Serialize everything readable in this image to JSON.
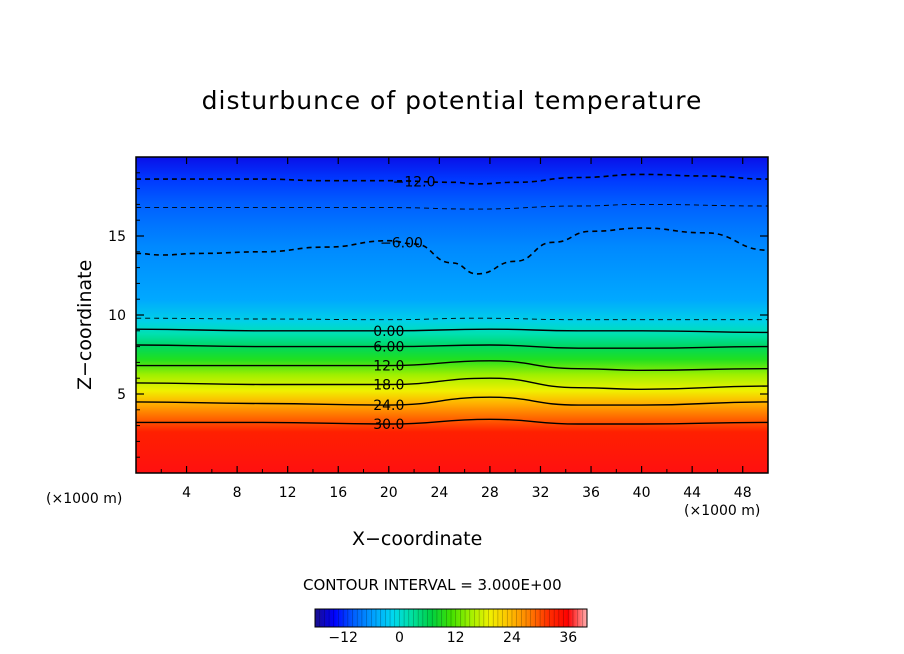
{
  "chart_data": {
    "type": "contour",
    "title": "disturbunce of potential temperature",
    "xlabel": "X−coordinate",
    "ylabel": "Z−coordinate",
    "x_unit": "(×1000 m)",
    "y_unit": "(×1000 m)",
    "xlim": [
      0,
      50
    ],
    "ylim": [
      0,
      20
    ],
    "x_ticks": [
      4,
      8,
      12,
      16,
      20,
      24,
      28,
      32,
      36,
      40,
      44,
      48
    ],
    "y_ticks": [
      5,
      10,
      15
    ],
    "contour_interval_text": "CONTOUR INTERVAL = 3.000E+00",
    "contour_interval": 3.0,
    "contours": [
      {
        "level": -12,
        "label": "−12.0",
        "dashed": true,
        "x": [
          0,
          5,
          10,
          15,
          20,
          25,
          27,
          30,
          35,
          40,
          45,
          50
        ],
        "z": [
          18.6,
          18.6,
          18.6,
          18.5,
          18.5,
          18.4,
          18.3,
          18.4,
          18.7,
          18.9,
          18.8,
          18.6
        ]
      },
      {
        "level": -9,
        "label": "",
        "dashed": true,
        "x": [
          0,
          10,
          20,
          27,
          35,
          40,
          50
        ],
        "z": [
          16.8,
          16.8,
          16.8,
          16.7,
          16.9,
          17.0,
          16.9
        ]
      },
      {
        "level": -6,
        "label": "−6.00",
        "dashed": true,
        "x": [
          0,
          2,
          5,
          10,
          15,
          20,
          22,
          25,
          27,
          30,
          33,
          36,
          40,
          45,
          50
        ],
        "z": [
          13.9,
          13.8,
          13.9,
          14.0,
          14.3,
          14.7,
          14.5,
          13.3,
          12.6,
          13.4,
          14.6,
          15.3,
          15.5,
          15.2,
          14.1
        ]
      },
      {
        "level": -3,
        "label": "",
        "dashed": true,
        "x": [
          0,
          10,
          20,
          27,
          35,
          40,
          50
        ],
        "z": [
          9.8,
          9.75,
          9.7,
          9.8,
          9.7,
          9.7,
          9.7
        ]
      },
      {
        "level": 0,
        "label": "0.00",
        "dashed": false,
        "x": [
          0,
          10,
          20,
          28,
          35,
          40,
          50
        ],
        "z": [
          9.1,
          9.0,
          9.0,
          9.1,
          9.0,
          9.0,
          8.9
        ]
      },
      {
        "level": 6,
        "label": "6.00",
        "dashed": false,
        "x": [
          0,
          10,
          20,
          28,
          35,
          40,
          50
        ],
        "z": [
          8.1,
          8.0,
          8.0,
          8.1,
          7.9,
          7.9,
          8.0
        ]
      },
      {
        "level": 12,
        "label": "12.0",
        "dashed": false,
        "x": [
          0,
          10,
          20,
          28,
          35,
          40,
          50
        ],
        "z": [
          6.8,
          6.8,
          6.8,
          7.1,
          6.6,
          6.5,
          6.6
        ]
      },
      {
        "level": 18,
        "label": "18.0",
        "dashed": false,
        "x": [
          0,
          10,
          20,
          28,
          35,
          40,
          50
        ],
        "z": [
          5.7,
          5.6,
          5.6,
          6.0,
          5.4,
          5.3,
          5.5
        ]
      },
      {
        "level": 24,
        "label": "24.0",
        "dashed": false,
        "x": [
          0,
          10,
          20,
          28,
          35,
          40,
          50
        ],
        "z": [
          4.5,
          4.4,
          4.3,
          4.8,
          4.3,
          4.3,
          4.5
        ]
      },
      {
        "level": 30,
        "label": "30.0",
        "dashed": false,
        "x": [
          0,
          10,
          20,
          28,
          35,
          40,
          50
        ],
        "z": [
          3.2,
          3.2,
          3.1,
          3.4,
          3.1,
          3.1,
          3.2
        ]
      }
    ],
    "colorbar": {
      "min": -18,
      "max": 40,
      "ticks": [
        -12,
        0,
        12,
        24,
        36
      ],
      "tick_labels": [
        "−12",
        "0",
        "12",
        "24",
        "36"
      ]
    },
    "colormap": [
      "#1a0f8c",
      "#0000ff",
      "#0060ff",
      "#00a0ff",
      "#00d8f0",
      "#00e0a0",
      "#00d040",
      "#40e000",
      "#a0f000",
      "#f0f000",
      "#ffc000",
      "#ff8000",
      "#ff3000",
      "#ff0000",
      "#ffb0b0"
    ]
  }
}
